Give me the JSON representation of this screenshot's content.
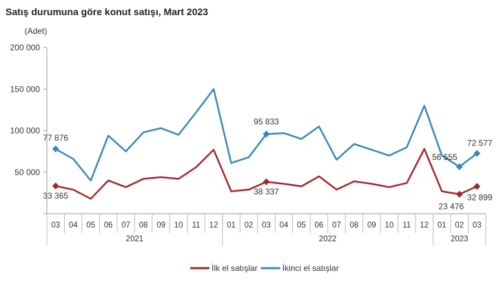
{
  "chart_data": {
    "type": "line",
    "title": "Satış durumuna göre konut satışı, Mart 2023",
    "ylabel": "(Adet)",
    "ylim": [
      0,
      200000
    ],
    "yticks": [
      "200 000",
      "150 000",
      "100 000",
      "50 000"
    ],
    "ytick_values": [
      200000,
      150000,
      100000,
      50000
    ],
    "grid": false,
    "legend_placement": "bottom",
    "categories": [
      "03",
      "04",
      "05",
      "06",
      "07",
      "08",
      "09",
      "10",
      "11",
      "12",
      "01",
      "02",
      "03",
      "04",
      "05",
      "06",
      "07",
      "08",
      "09",
      "10",
      "11",
      "12",
      "01",
      "02",
      "03"
    ],
    "years": [
      {
        "label": "2021",
        "count": 10
      },
      {
        "label": "2022",
        "count": 12
      },
      {
        "label": "2023",
        "count": 3
      }
    ],
    "series": [
      {
        "name": "İlk el satışlar",
        "color": "#a3282c",
        "values": [
          33365,
          29000,
          18000,
          40000,
          32000,
          42000,
          44000,
          42000,
          56000,
          77000,
          27000,
          29000,
          38337,
          36000,
          33000,
          45000,
          29000,
          39000,
          36000,
          32000,
          37000,
          78000,
          27000,
          23476,
          32899
        ],
        "labels": [
          {
            "index": 0,
            "text": "33 365"
          },
          {
            "index": 12,
            "text": "38 337"
          },
          {
            "index": 23,
            "text": "23 476"
          },
          {
            "index": 24,
            "text": "32 899"
          }
        ]
      },
      {
        "name": "İkinci el satışlar",
        "color": "#3a88bb",
        "values": [
          77876,
          66000,
          40000,
          94000,
          75000,
          98000,
          103000,
          95000,
          122000,
          150000,
          61000,
          68000,
          95833,
          97000,
          90000,
          105000,
          65000,
          84000,
          77000,
          70000,
          80000,
          130000,
          70000,
          56555,
          72577
        ],
        "labels": [
          {
            "index": 0,
            "text": "77 876"
          },
          {
            "index": 12,
            "text": "95 833"
          },
          {
            "index": 23,
            "text": "56 555"
          },
          {
            "index": 24,
            "text": "72 577"
          }
        ]
      }
    ]
  }
}
